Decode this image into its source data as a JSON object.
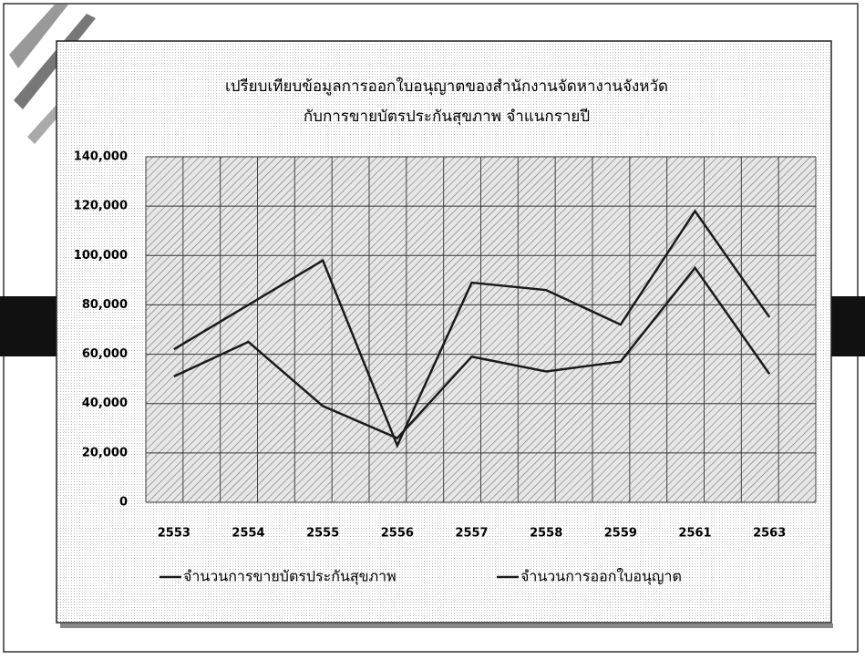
{
  "chart_data": {
    "type": "line",
    "title": [
      "เปรียบเทียบข้อมูลการออกใบอนุญาตของสำนักงานจัดหางานจังหวัด",
      "กับการขายบัตรประกันสุขภาพ จำแนกรายปี"
    ],
    "categories": [
      "2553",
      "2554",
      "2555",
      "2556",
      "2557",
      "2558",
      "2559",
      "2561",
      "2563"
    ],
    "series": [
      {
        "name": "จำนวนการขายบัตรประกันสุขภาพ",
        "color": "#1a1a1a",
        "values": [
          62000,
          80000,
          98000,
          23000,
          89000,
          86000,
          72000,
          118000,
          75000
        ]
      },
      {
        "name": "จำนวนการออกใบอนุญาต",
        "color": "#1a1a1a",
        "values": [
          51000,
          65000,
          39000,
          26000,
          59000,
          53000,
          57000,
          95000,
          52000
        ]
      }
    ],
    "ylim": [
      0,
      140000
    ],
    "yticks": [
      0,
      {
        "value": 20000,
        "label": "20,000"
      },
      {
        "value": 40000,
        "label": "40,000"
      },
      {
        "value": 60000,
        "label": "60,000"
      },
      {
        "value": 80000,
        "label": "80,000"
      },
      {
        "value": 100000,
        "label": "100,000"
      },
      {
        "value": 120000,
        "label": "120,000"
      },
      {
        "value": 140000,
        "label": "140,000"
      }
    ],
    "grid": true,
    "legend": "bottom"
  }
}
